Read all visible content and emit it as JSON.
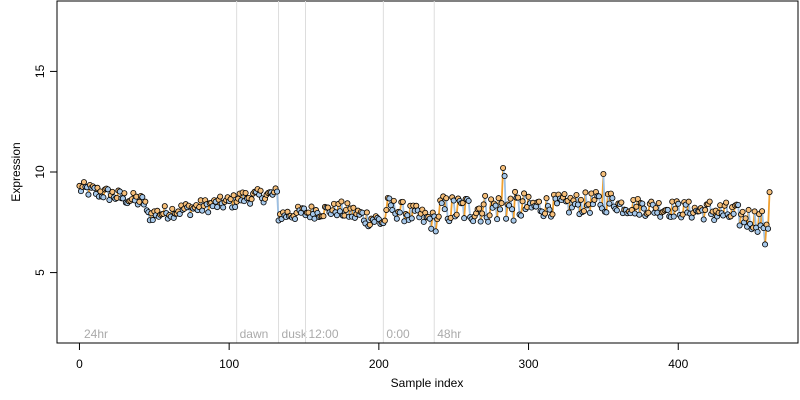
{
  "chart_data": {
    "type": "scatter",
    "xlabel": "Sample index",
    "ylabel": "Expression",
    "xlim": [
      -15,
      480
    ],
    "ylim": [
      1.5,
      18.5
    ],
    "x_ticks": [
      0,
      100,
      200,
      300,
      400
    ],
    "y_ticks": [
      5,
      10,
      15
    ],
    "grid": false,
    "colors": {
      "outline": "#000000",
      "fill_blue": "#a6c8ea",
      "fill_orange": "#f6bf7a",
      "line_blue": "#9dc0e3",
      "line_orange": "#f0a030",
      "marker": "#dddddd"
    },
    "markers": [
      {
        "x": 105,
        "label": "dawn"
      },
      {
        "x": 133,
        "label": "dusk"
      },
      {
        "x": 151,
        "label": "12:00"
      },
      {
        "x": 203,
        "label": "0:00"
      },
      {
        "x": 237,
        "label": "48hr"
      }
    ],
    "start_label": "24hr",
    "series": [
      {
        "start": 0,
        "end": 45,
        "mean": 8.85,
        "trend": -0.7,
        "noise": 0.35
      },
      {
        "start": 45,
        "end": 105,
        "mean": 8.2,
        "trend": 0.7,
        "noise": 0.35
      },
      {
        "start": 105,
        "end": 133,
        "mean": 8.8,
        "trend": 0.2,
        "noise": 0.35
      },
      {
        "start": 133,
        "end": 175,
        "mean": 8.0,
        "trend": 0.3,
        "noise": 0.35
      },
      {
        "start": 175,
        "end": 205,
        "mean": 7.8,
        "trend": -0.6,
        "noise": 0.45
      },
      {
        "start": 205,
        "end": 240,
        "mean": 7.9,
        "trend": -0.8,
        "noise": 0.5
      },
      {
        "start": 240,
        "end": 300,
        "mean": 8.2,
        "trend": 0.2,
        "noise": 0.75
      },
      {
        "start": 300,
        "end": 360,
        "mean": 8.4,
        "trend": 0.3,
        "noise": 0.55
      },
      {
        "start": 360,
        "end": 420,
        "mean": 8.2,
        "trend": -0.3,
        "noise": 0.45
      },
      {
        "start": 420,
        "end": 462,
        "mean": 7.8,
        "trend": -0.6,
        "noise": 0.6
      }
    ],
    "spikes": [
      {
        "x": 283,
        "y": 10.2
      },
      {
        "x": 284,
        "y": 9.8
      },
      {
        "x": 350,
        "y": 9.9
      },
      {
        "x": 461,
        "y": 9.0
      },
      {
        "x": 458,
        "y": 6.4
      }
    ]
  }
}
